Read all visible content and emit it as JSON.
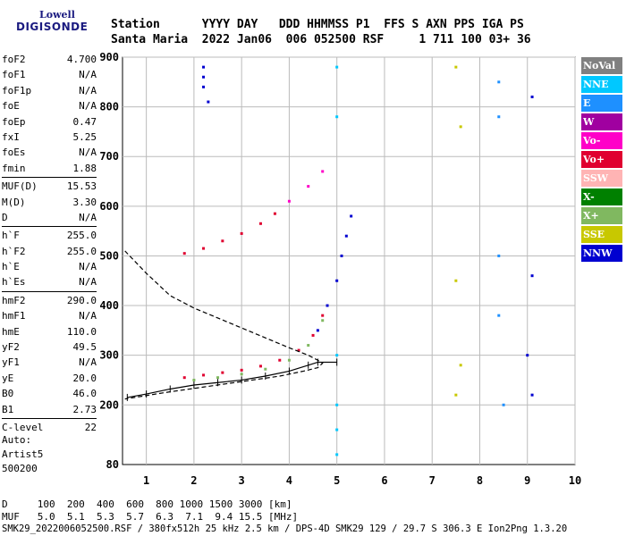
{
  "logo": {
    "line1": "Lowell",
    "line2": "DIGISONDE"
  },
  "header": {
    "row1": "Station      YYYY DAY   DDD HHMMSS P1  FFS S AXN PPS IGA PS",
    "row2": "Santa Maria  2022 Jan06  006 052500 RSF     1 711 100 03+ 36"
  },
  "params": [
    [
      {
        "k": "foF2",
        "v": "4.700"
      },
      {
        "k": "foF1",
        "v": "N/A"
      },
      {
        "k": "foF1p",
        "v": "N/A"
      },
      {
        "k": "foE",
        "v": "N/A"
      },
      {
        "k": "foEp",
        "v": "0.47"
      },
      {
        "k": "fxI",
        "v": "5.25"
      },
      {
        "k": "foEs",
        "v": "N/A"
      },
      {
        "k": "fmin",
        "v": "1.88"
      }
    ],
    [
      {
        "k": "MUF(D)",
        "v": "15.53"
      },
      {
        "k": "M(D)",
        "v": "3.30"
      },
      {
        "k": "D",
        "v": "N/A"
      }
    ],
    [
      {
        "k": "h`F",
        "v": "255.0"
      },
      {
        "k": "h`F2",
        "v": "255.0"
      },
      {
        "k": "h`E",
        "v": "N/A"
      },
      {
        "k": "h`Es",
        "v": "N/A"
      }
    ],
    [
      {
        "k": "hmF2",
        "v": "290.0"
      },
      {
        "k": "hmF1",
        "v": "N/A"
      },
      {
        "k": "hmE",
        "v": "110.0"
      },
      {
        "k": "yF2",
        "v": "49.5"
      },
      {
        "k": "yF1",
        "v": "N/A"
      },
      {
        "k": "yE",
        "v": "20.0"
      },
      {
        "k": "B0",
        "v": "46.0"
      },
      {
        "k": "B1",
        "v": "2.73"
      }
    ],
    [
      {
        "k": "C-level",
        "v": "22"
      }
    ]
  ],
  "auto": {
    "line1": "Auto:",
    "line2": "Artist5",
    "line3": "500200"
  },
  "legend": [
    {
      "label": "NoVal",
      "color": "#808080"
    },
    {
      "label": "NNE",
      "color": "#00c8ff"
    },
    {
      "label": "E",
      "color": "#1e90ff"
    },
    {
      "label": "W",
      "color": "#a000a0"
    },
    {
      "label": "Vo-",
      "color": "#ff00c8"
    },
    {
      "label": "Vo+",
      "color": "#e00030"
    },
    {
      "label": "SSW",
      "color": "#ffb4b4"
    },
    {
      "label": "X-",
      "color": "#008000"
    },
    {
      "label": "X+",
      "color": "#80b860"
    },
    {
      "label": "SSE",
      "color": "#c8c800"
    },
    {
      "label": "NNW",
      "color": "#0000d0"
    }
  ],
  "footer": {
    "row1": "D     100  200  400  600  800 1000 1500 3000 [km]",
    "row2": "MUF   5.0  5.1  5.3  5.7  6.3  7.1  9.4 15.5 [MHz]",
    "row3": "SMK29_2022006052500.RSF / 380fx512h 25 kHz 2.5 km / DPS-4D SMK29 129 / 29.7 S 306.3 E Ion2Png 1.3.20"
  },
  "chart_data": {
    "type": "scatter",
    "x_ticks": [
      1,
      2,
      3,
      4,
      5,
      6,
      7,
      8,
      9,
      10
    ],
    "y_ticks": [
      200,
      300,
      400,
      500,
      600,
      700,
      800,
      900
    ],
    "y_tick_labels": [
      "200",
      "300",
      "400",
      "500",
      "600",
      "700",
      "800",
      "900"
    ],
    "y_min_label": "80",
    "xlim": [
      0.5,
      10
    ],
    "ylim": [
      80,
      900
    ],
    "grid": true,
    "trace_clusters": [
      {
        "color": "#e00030",
        "points": [
          [
            1.8,
            255
          ],
          [
            2.2,
            260
          ],
          [
            2.6,
            265
          ],
          [
            3.0,
            270
          ],
          [
            3.4,
            278
          ],
          [
            3.8,
            290
          ],
          [
            4.2,
            310
          ],
          [
            4.5,
            340
          ],
          [
            4.7,
            380
          ]
        ]
      },
      {
        "color": "#80b860",
        "points": [
          [
            2.0,
            250
          ],
          [
            2.5,
            255
          ],
          [
            3.0,
            262
          ],
          [
            3.5,
            272
          ],
          [
            4.0,
            290
          ],
          [
            4.4,
            320
          ],
          [
            4.7,
            370
          ]
        ]
      },
      {
        "color": "#0000d0",
        "points": [
          [
            4.6,
            350
          ],
          [
            4.8,
            400
          ],
          [
            5.0,
            450
          ],
          [
            5.1,
            500
          ],
          [
            5.2,
            540
          ],
          [
            5.3,
            580
          ]
        ]
      },
      {
        "color": "#e00030",
        "points": [
          [
            1.8,
            505
          ],
          [
            2.2,
            515
          ],
          [
            2.6,
            530
          ],
          [
            3.0,
            545
          ],
          [
            3.4,
            565
          ],
          [
            3.7,
            585
          ]
        ]
      },
      {
        "color": "#ff00c8",
        "points": [
          [
            4.0,
            610
          ],
          [
            4.4,
            640
          ],
          [
            4.7,
            670
          ]
        ]
      },
      {
        "color": "#0000d0",
        "points": [
          [
            2.2,
            880
          ],
          [
            2.2,
            860
          ],
          [
            2.2,
            840
          ],
          [
            2.3,
            810
          ]
        ]
      },
      {
        "color": "#00c8ff",
        "points": [
          [
            5.0,
            880
          ],
          [
            5.0,
            780
          ],
          [
            5.0,
            300
          ],
          [
            5.0,
            200
          ],
          [
            5.0,
            150
          ],
          [
            5.0,
            100
          ]
        ]
      },
      {
        "color": "#c8c800",
        "points": [
          [
            7.5,
            880
          ],
          [
            7.6,
            760
          ],
          [
            7.5,
            450
          ],
          [
            7.6,
            280
          ],
          [
            7.5,
            220
          ]
        ]
      },
      {
        "color": "#1e90ff",
        "points": [
          [
            8.4,
            850
          ],
          [
            8.4,
            780
          ],
          [
            8.4,
            500
          ],
          [
            8.4,
            380
          ],
          [
            8.5,
            200
          ]
        ]
      },
      {
        "color": "#0000d0",
        "points": [
          [
            9.1,
            820
          ],
          [
            9.1,
            460
          ],
          [
            9.0,
            300
          ],
          [
            9.1,
            220
          ]
        ]
      }
    ],
    "profile": [
      [
        0.55,
        510
      ],
      [
        1.0,
        465
      ],
      [
        1.5,
        420
      ],
      [
        2.0,
        395
      ],
      [
        2.5,
        375
      ],
      [
        3.0,
        355
      ],
      [
        3.5,
        335
      ],
      [
        4.0,
        315
      ],
      [
        4.4,
        300
      ],
      [
        4.6,
        290
      ],
      [
        4.7,
        284
      ],
      [
        4.6,
        275
      ],
      [
        4.3,
        268
      ],
      [
        3.8,
        258
      ],
      [
        3.0,
        247
      ],
      [
        2.2,
        236
      ],
      [
        1.4,
        225
      ],
      [
        0.55,
        212
      ]
    ],
    "fitted_trace": [
      [
        0.6,
        215
      ],
      [
        1.0,
        222
      ],
      [
        1.5,
        232
      ],
      [
        2.0,
        240
      ],
      [
        2.5,
        245
      ],
      [
        3.0,
        250
      ],
      [
        3.5,
        258
      ],
      [
        4.0,
        268
      ],
      [
        4.4,
        280
      ],
      [
        4.6,
        286
      ],
      [
        5.0,
        286
      ]
    ]
  }
}
